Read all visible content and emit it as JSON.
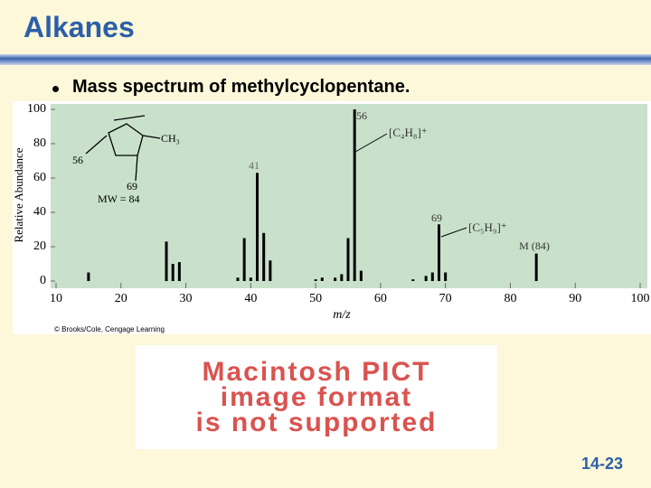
{
  "slide": {
    "title": "Alkanes",
    "bullet": "Mass spectrum of methylcyclopentane.",
    "page_number": "14-23",
    "placeholder": [
      "Macintosh PICT",
      "image format",
      "is not supported"
    ]
  },
  "chart_data": {
    "type": "bar",
    "x_label": "m/z",
    "y_label": "Relative Abundance",
    "credit": "© Brooks/Cole, Cengage Learning",
    "x": [
      15,
      27,
      28,
      29,
      38,
      39,
      40,
      41,
      42,
      43,
      50,
      51,
      53,
      54,
      55,
      56,
      57,
      65,
      67,
      68,
      69,
      70,
      84
    ],
    "values": [
      5,
      23,
      10,
      11,
      2,
      25,
      2,
      63,
      28,
      12,
      1,
      2,
      2,
      4,
      25,
      100,
      6,
      1,
      3,
      5,
      33,
      5,
      16
    ],
    "color": "#000000",
    "xlim": [
      10,
      100
    ],
    "xticks": [
      10,
      20,
      30,
      40,
      50,
      60,
      70,
      80,
      90,
      100
    ],
    "ylim": [
      0,
      100
    ],
    "yticks": [
      0,
      20,
      40,
      60,
      80,
      100
    ],
    "grid": false,
    "annotations": [
      "56",
      "41",
      "69",
      "M (84)",
      "[C₄H₈]⁺",
      "[C₅H₉]⁺"
    ],
    "structure_labels": [
      "CH₃",
      "56",
      "69",
      "MW = 84"
    ]
  }
}
